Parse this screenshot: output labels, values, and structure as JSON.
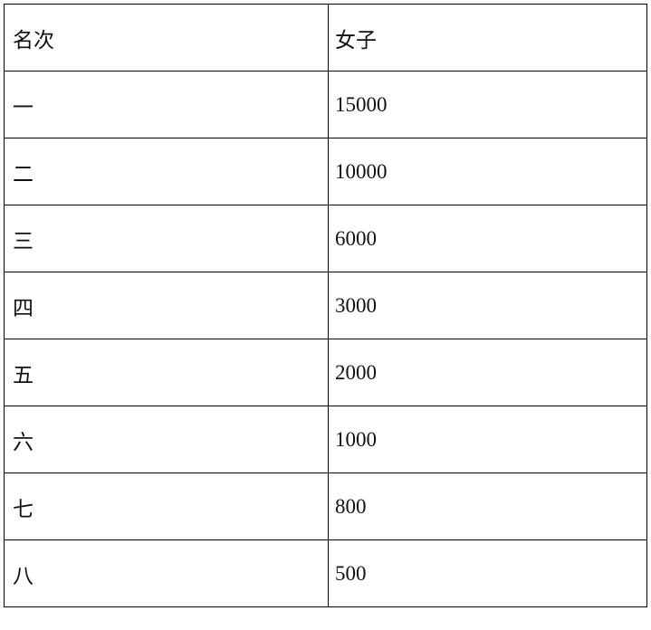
{
  "table": {
    "headers": [
      "名次",
      "女子"
    ],
    "rows": [
      [
        "一",
        "15000"
      ],
      [
        "二",
        "10000"
      ],
      [
        "三",
        "6000"
      ],
      [
        "四",
        "3000"
      ],
      [
        "五",
        "2000"
      ],
      [
        "六",
        "1000"
      ],
      [
        "七",
        "800"
      ],
      [
        "八",
        "500"
      ]
    ]
  }
}
